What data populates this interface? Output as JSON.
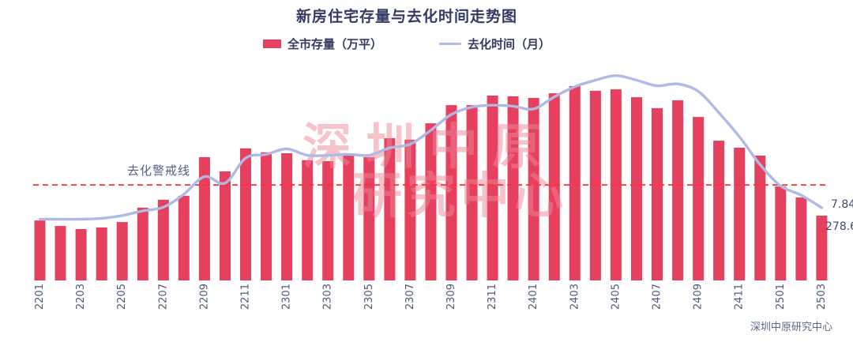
{
  "title": "新房住宅存量与去化时间走势图",
  "legend": [
    {
      "label": "全市存量（万平）",
      "color": "#e5405e",
      "type": "bar"
    },
    {
      "label": "去化时间（月）",
      "color": "#aeb9e6",
      "type": "line"
    }
  ],
  "annotations": {
    "line_end_value": "7.84",
    "bar_end_value": "278.6"
  },
  "watermark": {
    "line1": "深圳中原",
    "line2": "研究中心",
    "color": "#ed8798"
  },
  "footer": "深圳中原研究中心",
  "chart_data": {
    "type": "bar+line dual-axis",
    "title": "新房住宅存量与去化时间走势图",
    "categories": [
      "2201",
      "2202",
      "2203",
      "2204",
      "2205",
      "2206",
      "2207",
      "2208",
      "2209",
      "2210",
      "2211",
      "2212",
      "2301",
      "2302",
      "2303",
      "2304",
      "2305",
      "2306",
      "2307",
      "2308",
      "2309",
      "2310",
      "2311",
      "2312",
      "2401",
      "2402",
      "2403",
      "2404",
      "2405",
      "2406",
      "2407",
      "2408",
      "2409",
      "2410",
      "2411",
      "2412",
      "2501",
      "2502",
      "2503"
    ],
    "x_ticks_shown": [
      "2201",
      "2203",
      "2205",
      "2207",
      "2209",
      "2211",
      "2301",
      "2303",
      "2305",
      "2307",
      "2309",
      "2311",
      "2401",
      "2403",
      "2405",
      "2407",
      "2409",
      "2411",
      "2501",
      "2503"
    ],
    "series": [
      {
        "name": "全市存量（万平）",
        "type": "bar",
        "axis": "left",
        "color": "#e5405e",
        "values": [
          258,
          234,
          221,
          228,
          251,
          313,
          347,
          364,
          530,
          469,
          568,
          551,
          547,
          517,
          513,
          547,
          530,
          612,
          605,
          676,
          754,
          754,
          795,
          792,
          785,
          805,
          836,
          816,
          822,
          788,
          741,
          775,
          703,
          601,
          571,
          537,
          404,
          357,
          278.6
        ]
      },
      {
        "name": "去化时间（月）",
        "type": "line",
        "axis": "right",
        "color": "#aeb9e6",
        "values": [
          6.6,
          6.6,
          6.6,
          6.7,
          7.0,
          7.5,
          7.9,
          9.3,
          11.2,
          10.5,
          13.2,
          13.6,
          14.2,
          13.5,
          13.5,
          13.6,
          13.5,
          14.3,
          14.7,
          16.2,
          17.9,
          18.7,
          18.9,
          18.8,
          18.5,
          19.8,
          20.9,
          21.6,
          22.1,
          21.6,
          21.0,
          21.2,
          20.4,
          18.1,
          15.5,
          12.5,
          10.2,
          9.2,
          7.84
        ]
      }
    ],
    "warning_line": {
      "label": "去化警戒线",
      "value_est_months": 10.3,
      "color": "#ff3030"
    },
    "data_labels": [
      {
        "series": "去化时间（月）",
        "category": "2503",
        "text": "7.84"
      },
      {
        "series": "全市存量（万平）",
        "category": "2503",
        "text": "278.6"
      }
    ],
    "legend_position": "top",
    "grid": false,
    "y_axes_visible": false
  }
}
